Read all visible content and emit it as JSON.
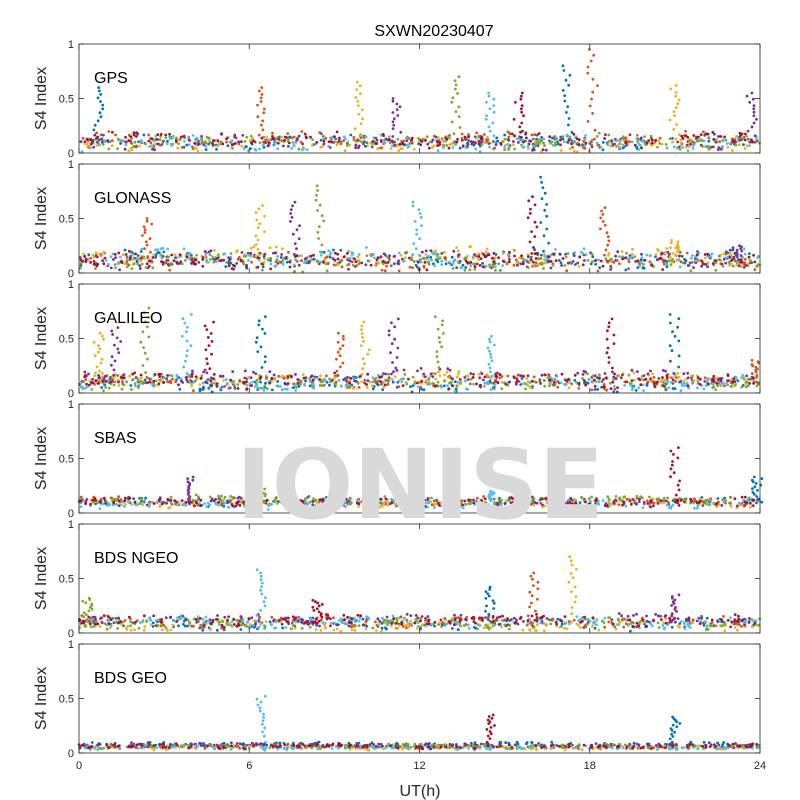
{
  "title": "SXWN20230407",
  "watermark": "IONISE",
  "chart_data": {
    "type": "scatter",
    "xlabel": "UT(h)",
    "xlim": [
      0,
      24
    ],
    "xticks": [
      "0",
      "6",
      "12",
      "18",
      "24"
    ],
    "xtick_values": [
      0,
      6,
      12,
      18,
      24
    ],
    "ylabel": "S4 Index",
    "ylim": [
      0,
      1
    ],
    "yticks": [
      "0",
      "0.5",
      "1"
    ],
    "ytick_values": [
      0,
      0.5,
      1
    ],
    "series_colors": [
      "#0072BD",
      "#D95319",
      "#EDB120",
      "#7E2F8E",
      "#77AC30",
      "#4DBEEE",
      "#A2142F"
    ],
    "panels": [
      {
        "label": "GPS",
        "baseline": [
          0.1,
          0.12,
          0.08,
          0.1,
          0.11,
          0.09,
          0.12
        ],
        "spread": 0.05,
        "spikes": [
          {
            "x": 0.7,
            "y": 0.6
          },
          {
            "x": 6.4,
            "y": 0.6
          },
          {
            "x": 9.9,
            "y": 0.65
          },
          {
            "x": 11.2,
            "y": 0.5
          },
          {
            "x": 13.3,
            "y": 0.7
          },
          {
            "x": 14.5,
            "y": 0.55
          },
          {
            "x": 15.5,
            "y": 0.55
          },
          {
            "x": 17.2,
            "y": 0.8
          },
          {
            "x": 18.1,
            "y": 0.95
          },
          {
            "x": 21.0,
            "y": 0.62
          },
          {
            "x": 23.7,
            "y": 0.55
          }
        ]
      },
      {
        "label": "GLONASS",
        "baseline": [
          0.12,
          0.1,
          0.15,
          0.12,
          0.1,
          0.14,
          0.11
        ],
        "spread": 0.06,
        "spikes": [
          {
            "x": 2.4,
            "y": 0.5
          },
          {
            "x": 6.4,
            "y": 0.62
          },
          {
            "x": 7.6,
            "y": 0.65
          },
          {
            "x": 8.5,
            "y": 0.8
          },
          {
            "x": 11.9,
            "y": 0.65
          },
          {
            "x": 16.0,
            "y": 0.7
          },
          {
            "x": 16.4,
            "y": 0.88
          },
          {
            "x": 18.5,
            "y": 0.6
          },
          {
            "x": 21.0,
            "y": 0.3
          },
          {
            "x": 23.2,
            "y": 0.25
          }
        ]
      },
      {
        "label": "GALILEO",
        "baseline": [
          0.08,
          0.1,
          0.12,
          0.15,
          0.1,
          0.09,
          0.11
        ],
        "spread": 0.05,
        "spikes": [
          {
            "x": 0.7,
            "y": 0.55
          },
          {
            "x": 1.3,
            "y": 0.6
          },
          {
            "x": 2.3,
            "y": 0.78
          },
          {
            "x": 3.8,
            "y": 0.72
          },
          {
            "x": 4.6,
            "y": 0.65
          },
          {
            "x": 6.4,
            "y": 0.7
          },
          {
            "x": 9.2,
            "y": 0.55
          },
          {
            "x": 10.1,
            "y": 0.65
          },
          {
            "x": 11.1,
            "y": 0.68
          },
          {
            "x": 12.7,
            "y": 0.7
          },
          {
            "x": 14.5,
            "y": 0.52
          },
          {
            "x": 18.7,
            "y": 0.68
          },
          {
            "x": 21.0,
            "y": 0.72
          },
          {
            "x": 23.8,
            "y": 0.3
          }
        ]
      },
      {
        "label": "SBAS",
        "baseline": [
          0.1,
          0.11,
          0.09,
          0.1,
          0.12,
          0.08,
          0.1
        ],
        "spread": 0.03,
        "spikes": [
          {
            "x": 3.9,
            "y": 0.33
          },
          {
            "x": 6.4,
            "y": 0.22
          },
          {
            "x": 14.5,
            "y": 0.2
          },
          {
            "x": 21.0,
            "y": 0.6
          },
          {
            "x": 23.9,
            "y": 0.33
          }
        ]
      },
      {
        "label": "BDS NGEO",
        "baseline": [
          0.08,
          0.1,
          0.07,
          0.12,
          0.09,
          0.1,
          0.11
        ],
        "spread": 0.04,
        "spikes": [
          {
            "x": 0.3,
            "y": 0.32
          },
          {
            "x": 6.4,
            "y": 0.58
          },
          {
            "x": 8.4,
            "y": 0.3
          },
          {
            "x": 14.5,
            "y": 0.42
          },
          {
            "x": 16.0,
            "y": 0.55
          },
          {
            "x": 17.4,
            "y": 0.7
          },
          {
            "x": 21.0,
            "y": 0.35
          }
        ]
      },
      {
        "label": "BDS GEO",
        "baseline": [
          0.08,
          0.06,
          0.05,
          0.07,
          0.06,
          0.05,
          0.06
        ],
        "spread": 0.015,
        "spikes": [
          {
            "x": 6.4,
            "y": 0.52
          },
          {
            "x": 14.5,
            "y": 0.35
          },
          {
            "x": 21.0,
            "y": 0.33
          }
        ]
      }
    ]
  }
}
